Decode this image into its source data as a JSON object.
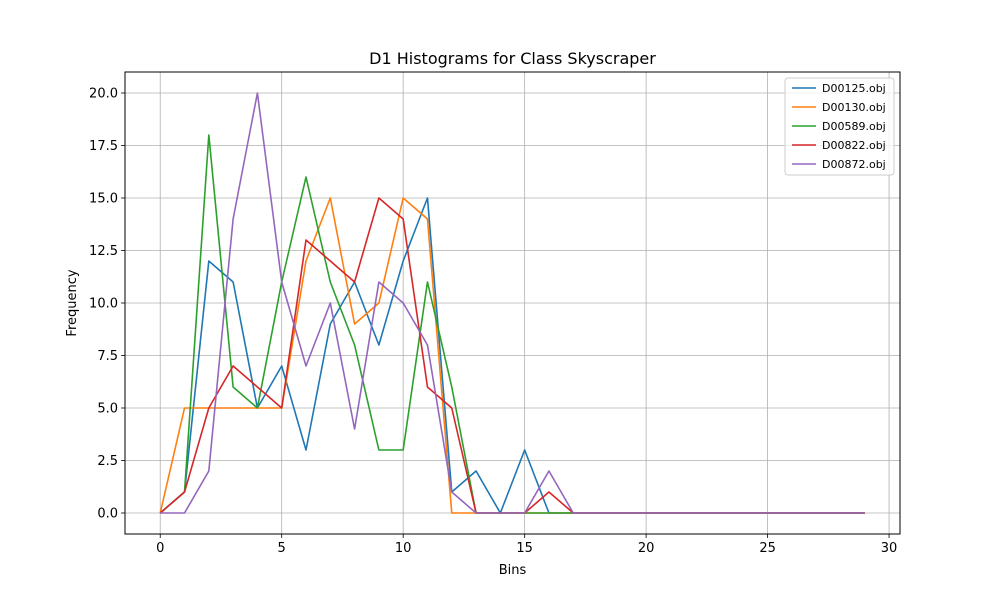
{
  "chart_data": {
    "type": "line",
    "title": "D1 Histograms for Class Skyscraper",
    "xlabel": "Bins",
    "ylabel": "Frequency",
    "xlim": [
      -1.45,
      30.45
    ],
    "ylim": [
      -1.0,
      21.0
    ],
    "xticks": [
      0,
      5,
      10,
      15,
      20,
      25,
      30
    ],
    "yticks": [
      0.0,
      2.5,
      5.0,
      7.5,
      10.0,
      12.5,
      15.0,
      17.5,
      20.0
    ],
    "xtick_labels": [
      "0",
      "5",
      "10",
      "15",
      "20",
      "25",
      "30"
    ],
    "ytick_labels": [
      "0.0",
      "2.5",
      "5.0",
      "7.5",
      "10.0",
      "12.5",
      "15.0",
      "17.5",
      "20.0"
    ],
    "grid": true,
    "legend_position": "top-right",
    "x": [
      0,
      1,
      2,
      3,
      4,
      5,
      6,
      7,
      8,
      9,
      10,
      11,
      12,
      13,
      14,
      15,
      16,
      17,
      18,
      19,
      20,
      21,
      22,
      23,
      24,
      25,
      26,
      27,
      28,
      29
    ],
    "series": [
      {
        "name": "D00125.obj",
        "color": "#1f77b4",
        "values": [
          0,
          1,
          12,
          11,
          5,
          7,
          3,
          9,
          11,
          8,
          12,
          15,
          1,
          2,
          0,
          3,
          0,
          0,
          0,
          0,
          0,
          0,
          0,
          0,
          0,
          0,
          0,
          0,
          0,
          0
        ]
      },
      {
        "name": "D00130.obj",
        "color": "#ff7f0e",
        "values": [
          0,
          5,
          5,
          5,
          5,
          5,
          12,
          15,
          9,
          10,
          15,
          14,
          0,
          0,
          0,
          0,
          0,
          0,
          0,
          0,
          0,
          0,
          0,
          0,
          0,
          0,
          0,
          0,
          0,
          0
        ]
      },
      {
        "name": "D00589.obj",
        "color": "#2ca02c",
        "values": [
          0,
          1,
          18,
          6,
          5,
          11,
          16,
          11,
          8,
          3,
          3,
          11,
          6,
          0,
          0,
          0,
          0,
          0,
          0,
          0,
          0,
          0,
          0,
          0,
          0,
          0,
          0,
          0,
          0,
          0
        ]
      },
      {
        "name": "D00822.obj",
        "color": "#d62728",
        "values": [
          0,
          1,
          5,
          7,
          6,
          5,
          13,
          12,
          11,
          15,
          14,
          6,
          5,
          0,
          0,
          0,
          1,
          0,
          0,
          0,
          0,
          0,
          0,
          0,
          0,
          0,
          0,
          0,
          0,
          0
        ]
      },
      {
        "name": "D00872.obj",
        "color": "#9467bd",
        "values": [
          0,
          0,
          2,
          14,
          20,
          11,
          7,
          10,
          4,
          11,
          10,
          8,
          1,
          0,
          0,
          0,
          2,
          0,
          0,
          0,
          0,
          0,
          0,
          0,
          0,
          0,
          0,
          0,
          0,
          0
        ]
      }
    ]
  }
}
